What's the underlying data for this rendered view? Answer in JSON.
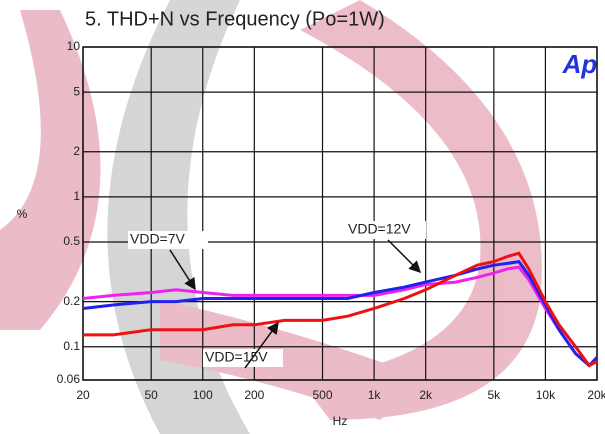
{
  "chart_data": {
    "type": "line",
    "title": "5. THD+N vs Frequency (Po=1W)",
    "xlabel": "Hz",
    "ylabel": "%",
    "logo": "Ap",
    "xscale": "log",
    "yscale": "log",
    "grid": true,
    "x": [
      20,
      30,
      50,
      70,
      100,
      150,
      200,
      300,
      500,
      700,
      1000,
      1500,
      2000,
      3000,
      4000,
      5000,
      6000,
      7000,
      8000,
      10000,
      12000,
      15000,
      18000,
      20000
    ],
    "series": [
      {
        "name": "VDD=7V",
        "color": "#ee22ee",
        "values": [
          0.21,
          0.22,
          0.23,
          0.24,
          0.23,
          0.22,
          0.22,
          0.22,
          0.22,
          0.22,
          0.22,
          0.24,
          0.26,
          0.27,
          0.29,
          0.31,
          0.33,
          0.34,
          0.28,
          0.18,
          0.13,
          0.09,
          0.075,
          0.08
        ]
      },
      {
        "name": "VDD=12V",
        "color": "#2222ee",
        "values": [
          0.18,
          0.19,
          0.2,
          0.2,
          0.21,
          0.21,
          0.21,
          0.21,
          0.21,
          0.21,
          0.23,
          0.25,
          0.27,
          0.3,
          0.33,
          0.35,
          0.36,
          0.37,
          0.3,
          0.19,
          0.13,
          0.09,
          0.075,
          0.085
        ]
      },
      {
        "name": "VDD=15V",
        "color": "#ee1111",
        "values": [
          0.12,
          0.12,
          0.13,
          0.13,
          0.13,
          0.14,
          0.14,
          0.15,
          0.15,
          0.16,
          0.18,
          0.21,
          0.24,
          0.3,
          0.35,
          0.37,
          0.4,
          0.42,
          0.33,
          0.2,
          0.14,
          0.1,
          0.075,
          0.08
        ]
      }
    ],
    "xlim": [
      20,
      20000
    ],
    "ylim": [
      0.06,
      10
    ],
    "xticks": [
      20,
      50,
      100,
      200,
      500,
      {
        "value": 1000,
        "label": "1k"
      },
      {
        "value": 2000,
        "label": "2k"
      },
      {
        "value": 5000,
        "label": "5k"
      },
      {
        "value": 10000,
        "label": "10k"
      },
      {
        "value": 20000,
        "label": "20k"
      }
    ],
    "yticks": [
      10,
      5,
      2,
      1,
      0.5,
      0.2,
      0.1,
      0.06
    ]
  }
}
